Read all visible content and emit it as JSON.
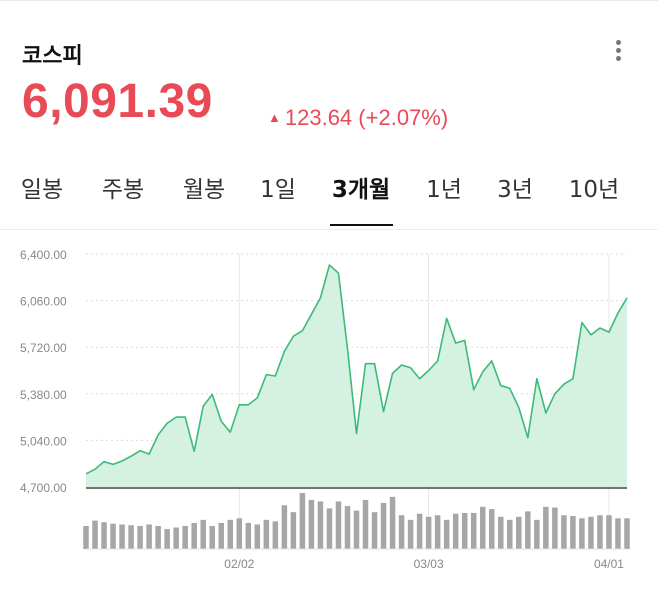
{
  "header": {
    "title": "코스피",
    "more_icon": "more-vertical-icon"
  },
  "quote": {
    "price": "6,091.39",
    "change": "123.64",
    "change_pct": "(+2.07%)",
    "direction_icon": "up-triangle-icon",
    "color": "#e84b55"
  },
  "tabs": [
    {
      "label": "일봉",
      "active": false
    },
    {
      "label": "주봉",
      "active": false
    },
    {
      "label": "월봉",
      "active": false
    },
    {
      "label": "1일",
      "active": false
    },
    {
      "label": "3개월",
      "active": true
    },
    {
      "label": "1년",
      "active": false
    },
    {
      "label": "3년",
      "active": false
    },
    {
      "label": "10년",
      "active": false
    }
  ],
  "chart_data": {
    "type": "area",
    "ylim": [
      4700,
      6400
    ],
    "y_ticks": [
      "6,400.00",
      "6,060.00",
      "5,720.00",
      "5,380.00",
      "5,040.00",
      "4,700.00"
    ],
    "x_ticks": [
      {
        "label": "02/02",
        "index": 17
      },
      {
        "label": "03/03",
        "index": 38
      },
      {
        "label": "04/01",
        "index": 58
      }
    ],
    "line_color": "#3dba7a",
    "fill_color": "#d4f1e1",
    "volume_color": "#a6a6a6",
    "values": [
      4795,
      4830,
      4885,
      4865,
      4890,
      4925,
      4965,
      4940,
      5080,
      5165,
      5210,
      5210,
      4960,
      5290,
      5375,
      5180,
      5100,
      5300,
      5300,
      5350,
      5520,
      5510,
      5690,
      5800,
      5840,
      5960,
      6080,
      6320,
      6260,
      5710,
      5090,
      5600,
      5600,
      5250,
      5530,
      5590,
      5570,
      5490,
      5550,
      5620,
      5930,
      5750,
      5770,
      5410,
      5540,
      5620,
      5440,
      5420,
      5280,
      5060,
      5490,
      5240,
      5380,
      5450,
      5490,
      5900,
      5810,
      5860,
      5830,
      5970,
      6080
    ],
    "volumes": [
      30,
      37,
      35,
      33,
      32,
      31,
      30,
      32,
      30,
      26,
      28,
      30,
      34,
      38,
      30,
      34,
      38,
      40,
      34,
      32,
      38,
      36,
      57,
      48,
      73,
      64,
      62,
      53,
      62,
      56,
      50,
      64,
      48,
      60,
      68,
      44,
      38,
      46,
      42,
      44,
      38,
      46,
      47,
      47,
      55,
      52,
      42,
      38,
      42,
      49,
      38,
      55,
      54,
      44,
      43,
      40,
      42,
      44,
      44,
      40,
      40
    ]
  }
}
